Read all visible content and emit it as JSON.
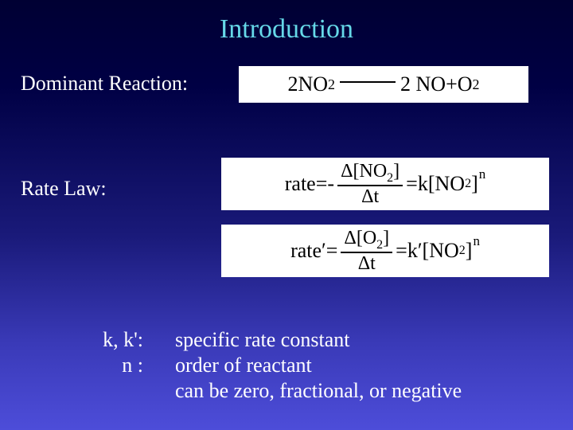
{
  "title": "Introduction",
  "sections": {
    "dominant_label": "Dominant Reaction:",
    "ratelaw_label": "Rate Law:"
  },
  "reaction": {
    "lhs_coef": "2",
    "lhs_species": "NO",
    "lhs_sub": "2",
    "rhs_coef1": "2",
    "rhs_species1": "NO",
    "plus": " + ",
    "rhs_species2": "O",
    "rhs_sub2": "2"
  },
  "rate1": {
    "lhs": "rate",
    "eq": " = ",
    "minus": "- ",
    "num_delta": "Δ",
    "num_br_l": "[",
    "num_species": "NO",
    "num_sub": "2",
    "num_br_r": "]",
    "den_delta": "Δ",
    "den_t": "t",
    "eq2": " = ",
    "k": "k",
    "br_l": "[",
    "species": "NO",
    "sub": "2",
    "br_r": "]",
    "exp": "n"
  },
  "rate2": {
    "lhs": "rate′",
    "eq": " = ",
    "num_delta": "Δ",
    "num_br_l": "[",
    "num_species": "O",
    "num_sub": "2",
    "num_br_r": "]",
    "den_delta": "Δ",
    "den_t": "t",
    "eq2": " = ",
    "k": "k′",
    "br_l": "[",
    "species": "NO",
    "sub": "2",
    "br_r": "]",
    "exp": "n"
  },
  "defs": {
    "term1": "k, k':",
    "desc1": "specific rate constant",
    "term2": "n :",
    "desc2": "order of reactant",
    "desc3": "can be zero, fractional, or negative"
  },
  "colors": {
    "title": "#66d9e8",
    "text": "#ffffff",
    "box_bg": "#ffffff",
    "box_text": "#000000"
  }
}
